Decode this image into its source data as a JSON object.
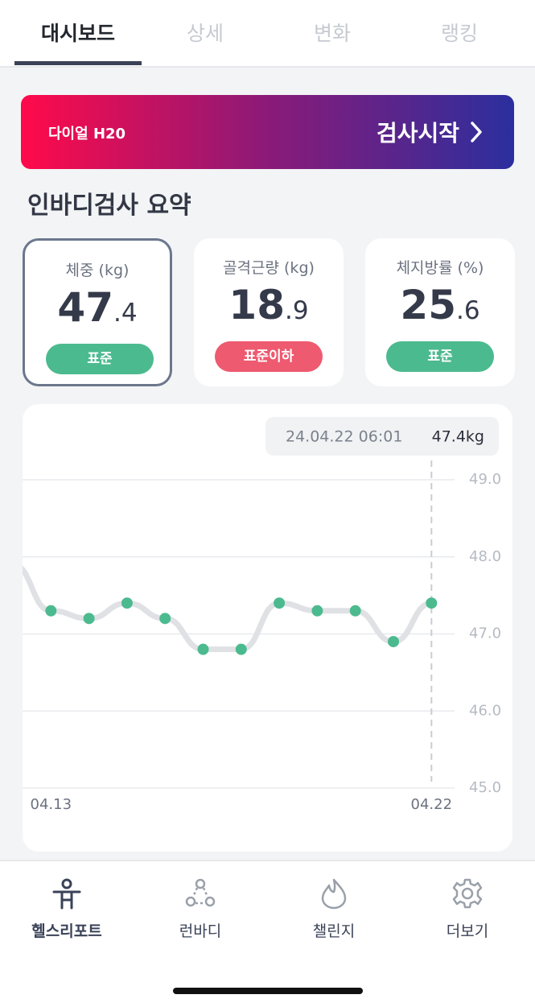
{
  "tabs": [
    "대시보드",
    "상세",
    "변화",
    "랭킹"
  ],
  "banner": {
    "device": "다이얼 H20",
    "action": "검사시작"
  },
  "section_title": "인바디검사 요약",
  "cards": [
    {
      "label": "체중 (kg)",
      "int": "47",
      "dec": ".4",
      "status": "표준",
      "status_color": "#4cba8f"
    },
    {
      "label": "골격근량 (kg)",
      "int": "18",
      "dec": ".9",
      "status": "표준이하",
      "status_color": "#ee5a6f"
    },
    {
      "label": "체지방률 (%)",
      "int": "25",
      "dec": ".6",
      "status": "표준",
      "status_color": "#4cba8f"
    }
  ],
  "chart_data": {
    "type": "line",
    "categories": [
      null,
      "04.13",
      null,
      null,
      null,
      null,
      null,
      null,
      null,
      null,
      null,
      "04.22"
    ],
    "values": [
      47.9,
      47.3,
      47.2,
      47.4,
      47.2,
      46.8,
      46.8,
      47.4,
      47.3,
      47.3,
      46.9,
      47.4
    ],
    "line_color": "#dfe1e5",
    "point_color": "#4cba8f",
    "tooltip": {
      "date": "24.04.22 06:01",
      "value": "47.4kg"
    },
    "ylim": [
      45,
      49
    ],
    "yticks": [
      {
        "value": 45,
        "label": "45.0"
      },
      {
        "value": 46,
        "label": "46.0"
      },
      {
        "value": 47,
        "label": "47.0"
      },
      {
        "value": 48,
        "label": "48.0"
      },
      {
        "value": 49,
        "label": "49.0"
      }
    ],
    "grid": true
  },
  "nav": [
    "헬스리포트",
    "런바디",
    "챌린지",
    "더보기"
  ]
}
